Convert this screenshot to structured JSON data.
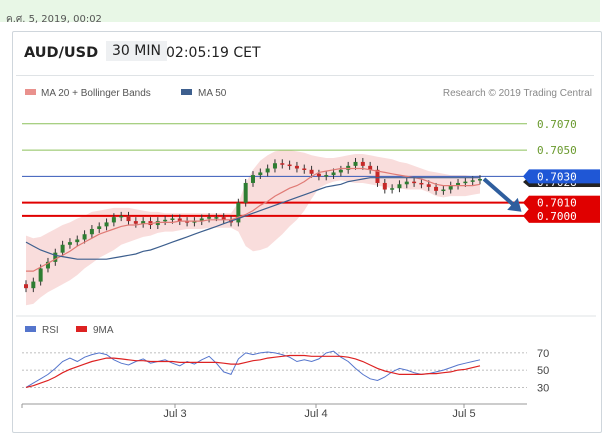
{
  "page": {
    "timestamp": "ค.ศ. 5, 2019, 00:02"
  },
  "header": {
    "symbol": "AUD/USD",
    "timeframe": "30 MIN",
    "time": "02:05:19 CET"
  },
  "legend": {
    "ma20_bb": "MA 20 + Bollinger Bands",
    "ma50": "MA 50",
    "credit": "Research © 2019 Trading Central"
  },
  "colors": {
    "candle_up": "#2e7d32",
    "candle_down": "#c62828",
    "bollinger_fill": "#f5c6c4",
    "ma20": "#e07a75",
    "ma50": "#3d5f8e",
    "support": "#e00000",
    "resistance": "#8cc05a",
    "current_line": "#3458b8",
    "arrow": "#2f5e9e",
    "rsi": "#5575cc",
    "rsi_ma": "#dd2222"
  },
  "chart_data": [
    {
      "type": "candlestick",
      "title": "AUD/USD",
      "interval": "30 MIN",
      "x_labels": [
        "Jul 3",
        "Jul 4",
        "Jul 5"
      ],
      "y_levels": [
        {
          "value": 0.707,
          "label": "0.7070",
          "role": "resistance"
        },
        {
          "value": 0.705,
          "label": "0.7050",
          "role": "resistance"
        },
        {
          "value": 0.703,
          "label": "0.7030",
          "role": "current"
        },
        {
          "value": 0.7028,
          "label": "0.7028",
          "role": "last-price"
        },
        {
          "value": 0.701,
          "label": "0.7010",
          "role": "support"
        },
        {
          "value": 0.7,
          "label": "0.7000",
          "role": "support"
        }
      ],
      "ylim": [
        0.6936,
        0.7082
      ],
      "close": [
        0.6945,
        0.695,
        0.696,
        0.6965,
        0.6972,
        0.6978,
        0.698,
        0.6982,
        0.6986,
        0.699,
        0.6992,
        0.6995,
        0.6999,
        0.7,
        0.6996,
        0.6994,
        0.6996,
        0.6993,
        0.6996,
        0.6997,
        0.6998,
        0.6996,
        0.6995,
        0.6996,
        0.6998,
        0.6999,
        0.6999,
        0.6997,
        0.6995,
        0.701,
        0.7025,
        0.7031,
        0.7033,
        0.7036,
        0.704,
        0.7039,
        0.7038,
        0.7036,
        0.7035,
        0.7032,
        0.703,
        0.7031,
        0.7033,
        0.7035,
        0.7038,
        0.7041,
        0.7038,
        0.7035,
        0.7025,
        0.702,
        0.7021,
        0.7024,
        0.7026,
        0.7025,
        0.7024,
        0.7022,
        0.7019,
        0.702,
        0.7023,
        0.7025,
        0.7026,
        0.7027,
        0.7028
      ],
      "ma20": [
        0.6958,
        0.6958,
        0.6961,
        0.6964,
        0.6967,
        0.697,
        0.6973,
        0.6977,
        0.698,
        0.6983,
        0.6986,
        0.6988,
        0.699,
        0.6992,
        0.6993,
        0.6993,
        0.6994,
        0.6994,
        0.6995,
        0.6995,
        0.6995,
        0.6996,
        0.6996,
        0.6996,
        0.6996,
        0.6997,
        0.6997,
        0.6997,
        0.6997,
        0.6999,
        0.7001,
        0.7004,
        0.7008,
        0.7011,
        0.7015,
        0.7018,
        0.7021,
        0.7023,
        0.7026,
        0.703,
        0.7033,
        0.7034,
        0.7035,
        0.7036,
        0.7036,
        0.7036,
        0.7036,
        0.7035,
        0.7034,
        0.7033,
        0.7032,
        0.7031,
        0.703,
        0.7029,
        0.7028,
        0.7026,
        0.7024,
        0.7023,
        0.7023,
        0.7023,
        0.7023,
        0.7023,
        0.7024
      ],
      "bb_upper": [
        0.6985,
        0.6983,
        0.6984,
        0.6987,
        0.699,
        0.6993,
        0.6995,
        0.6998,
        0.7,
        0.7003,
        0.7004,
        0.7005,
        0.7006,
        0.7006,
        0.7006,
        0.7005,
        0.7004,
        0.7003,
        0.7003,
        0.7002,
        0.7002,
        0.7002,
        0.7002,
        0.7002,
        0.7002,
        0.7002,
        0.7002,
        0.7002,
        0.7002,
        0.701,
        0.7025,
        0.7035,
        0.7042,
        0.7046,
        0.7049,
        0.705,
        0.705,
        0.7049,
        0.7048,
        0.7046,
        0.7045,
        0.7044,
        0.7044,
        0.7045,
        0.7046,
        0.7047,
        0.7047,
        0.7046,
        0.7045,
        0.7044,
        0.7043,
        0.7041,
        0.704,
        0.7038,
        0.7036,
        0.7034,
        0.7033,
        0.7032,
        0.7031,
        0.7031,
        0.7031,
        0.703,
        0.7031
      ],
      "bb_lower": [
        0.6932,
        0.6933,
        0.6938,
        0.6942,
        0.6945,
        0.6948,
        0.6951,
        0.6955,
        0.696,
        0.6964,
        0.6968,
        0.6971,
        0.6974,
        0.6978,
        0.698,
        0.6982,
        0.6984,
        0.6985,
        0.6987,
        0.6988,
        0.6988,
        0.6989,
        0.699,
        0.699,
        0.699,
        0.6991,
        0.6991,
        0.6991,
        0.6991,
        0.6988,
        0.6977,
        0.6973,
        0.6974,
        0.6976,
        0.6981,
        0.6986,
        0.6992,
        0.6997,
        0.7004,
        0.7013,
        0.7021,
        0.7024,
        0.7026,
        0.7027,
        0.7026,
        0.7025,
        0.7025,
        0.7024,
        0.7023,
        0.7022,
        0.7021,
        0.7021,
        0.702,
        0.702,
        0.702,
        0.7018,
        0.7015,
        0.7014,
        0.7015,
        0.7015,
        0.7015,
        0.7016,
        0.7017
      ],
      "ma50": [
        0.698,
        0.6977,
        0.6974,
        0.6972,
        0.697,
        0.6969,
        0.6968,
        0.6967,
        0.6967,
        0.6967,
        0.6967,
        0.6967,
        0.6968,
        0.6969,
        0.697,
        0.6971,
        0.6973,
        0.6974,
        0.6976,
        0.6978,
        0.698,
        0.6982,
        0.6984,
        0.6986,
        0.6988,
        0.699,
        0.6992,
        0.6994,
        0.6996,
        0.6998,
        0.7,
        0.7002,
        0.7004,
        0.7006,
        0.7008,
        0.701,
        0.7012,
        0.7014,
        0.7016,
        0.7018,
        0.702,
        0.7022,
        0.7023,
        0.7024,
        0.7026,
        0.7027,
        0.7028,
        0.7029,
        0.7029,
        0.7029,
        0.7029,
        0.7029,
        0.7029,
        0.7029,
        0.7029,
        0.7029,
        0.7029,
        0.7029,
        0.7029,
        0.7029,
        0.7029,
        0.7029,
        0.7029
      ],
      "forecast_arrow": {
        "from": 0.7028,
        "to": 0.7
      }
    },
    {
      "type": "line",
      "title": "",
      "legend": [
        "RSI",
        "9MA"
      ],
      "y_ticks": [
        70,
        50,
        30
      ],
      "ylim": [
        20,
        78
      ],
      "series": [
        {
          "name": "RSI",
          "values": [
            30,
            35,
            40,
            45,
            52,
            60,
            64,
            60,
            65,
            68,
            70,
            68,
            62,
            58,
            56,
            60,
            63,
            58,
            60,
            62,
            58,
            55,
            60,
            57,
            62,
            66,
            58,
            48,
            45,
            63,
            70,
            68,
            70,
            71,
            70,
            68,
            65,
            60,
            62,
            60,
            63,
            70,
            72,
            65,
            60,
            52,
            45,
            40,
            38,
            42,
            48,
            52,
            50,
            47,
            45,
            46,
            48,
            50,
            53,
            56,
            58,
            60,
            62
          ]
        },
        {
          "name": "9MA",
          "values": [
            30,
            32,
            35,
            38,
            42,
            47,
            51,
            54,
            57,
            60,
            62,
            64,
            64,
            63,
            62,
            61,
            61,
            60,
            60,
            60,
            60,
            59,
            59,
            59,
            59,
            59,
            59,
            58,
            57,
            57,
            59,
            61,
            62,
            64,
            65,
            66,
            67,
            67,
            67,
            66,
            66,
            66,
            66,
            66,
            65,
            63,
            60,
            56,
            52,
            49,
            47,
            45,
            45,
            45,
            45,
            46,
            46,
            47,
            48,
            50,
            51,
            53,
            55
          ]
        }
      ]
    }
  ]
}
